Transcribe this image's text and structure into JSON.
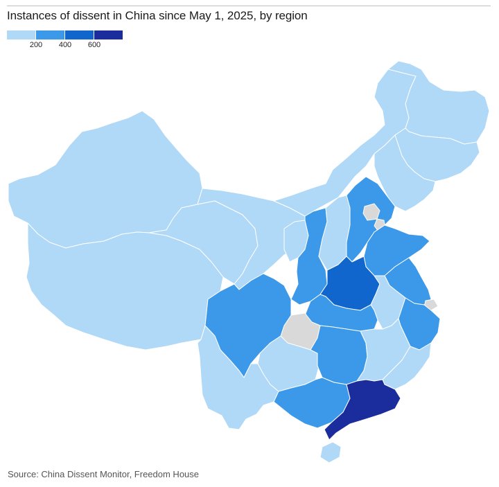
{
  "title": "Instances of dissent in China since May 1, 2025, by region",
  "source": "Source: China Dissent Monitor, Freedom House",
  "legend": {
    "colors": [
      "#b0d8f7",
      "#3c98e8",
      "#1066cc",
      "#1b2d9c"
    ],
    "ticks": [
      "200",
      "400",
      "600"
    ]
  },
  "colors": {
    "no_data": "#d9d9d9",
    "border": "#ffffff"
  },
  "map": {
    "regions": [
      {
        "name": "Xinjiang",
        "bin": 0
      },
      {
        "name": "Tibet",
        "bin": 0
      },
      {
        "name": "Qinghai",
        "bin": 0
      },
      {
        "name": "Gansu",
        "bin": 0
      },
      {
        "name": "Inner Mongolia",
        "bin": 0
      },
      {
        "name": "Heilongjiang",
        "bin": 0
      },
      {
        "name": "Jilin",
        "bin": 0
      },
      {
        "name": "Liaoning",
        "bin": 0
      },
      {
        "name": "Ningxia",
        "bin": 0
      },
      {
        "name": "Shaanxi",
        "bin": 1
      },
      {
        "name": "Shanxi",
        "bin": 0
      },
      {
        "name": "Hebei",
        "bin": 1
      },
      {
        "name": "Beijing",
        "bin": -1
      },
      {
        "name": "Tianjin",
        "bin": -1
      },
      {
        "name": "Shandong",
        "bin": 1
      },
      {
        "name": "Henan",
        "bin": 2
      },
      {
        "name": "Jiangsu",
        "bin": 1
      },
      {
        "name": "Shanghai",
        "bin": -1
      },
      {
        "name": "Anhui",
        "bin": 0
      },
      {
        "name": "Zhejiang",
        "bin": 1
      },
      {
        "name": "Hubei",
        "bin": 1
      },
      {
        "name": "Chongqing",
        "bin": -1
      },
      {
        "name": "Sichuan",
        "bin": 1
      },
      {
        "name": "Guizhou",
        "bin": 0
      },
      {
        "name": "Hunan",
        "bin": 1
      },
      {
        "name": "Jiangxi",
        "bin": 0
      },
      {
        "name": "Fujian",
        "bin": 0
      },
      {
        "name": "Yunnan",
        "bin": 0
      },
      {
        "name": "Guangxi",
        "bin": 1
      },
      {
        "name": "Guangdong",
        "bin": 3
      },
      {
        "name": "Hainan",
        "bin": 0
      }
    ]
  }
}
